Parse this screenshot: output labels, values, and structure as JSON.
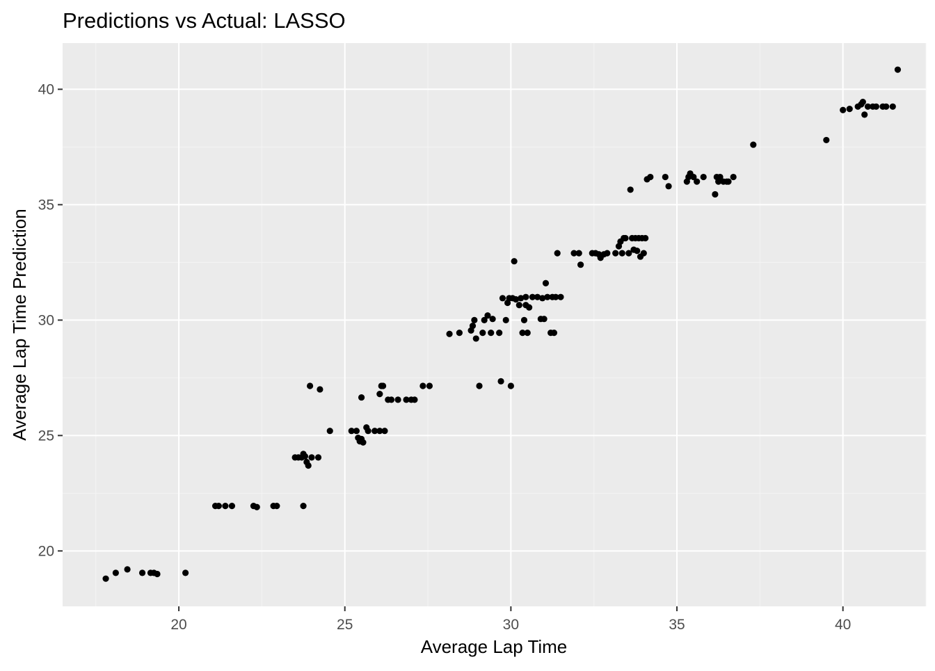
{
  "chart_data": {
    "type": "scatter",
    "title": "Predictions vs Actual: LASSO",
    "xlabel": "Average Lap Time",
    "ylabel": "Average Lap Time Prediction",
    "xlim": [
      16.5,
      42.5
    ],
    "ylim": [
      17.6,
      42.0
    ],
    "x_ticks": [
      20,
      25,
      30,
      35,
      40
    ],
    "y_ticks": [
      20,
      25,
      30,
      35,
      40
    ],
    "x_tick_labels": [
      "20",
      "25",
      "30",
      "35",
      "40"
    ],
    "y_tick_labels": [
      "20",
      "25",
      "30",
      "35",
      "40"
    ],
    "grid": true,
    "legend": "none",
    "colors": {
      "panel_background": "#ebebeb",
      "grid_major": "#ffffff",
      "grid_minor": "#f4f4f4",
      "point": "#000000",
      "tick_label": "#4d4d4d",
      "axis_title": "#000000"
    },
    "points": [
      [
        17.8,
        18.8
      ],
      [
        18.1,
        19.05
      ],
      [
        18.45,
        19.2
      ],
      [
        18.9,
        19.05
      ],
      [
        19.15,
        19.05
      ],
      [
        19.25,
        19.05
      ],
      [
        19.35,
        19.0
      ],
      [
        20.2,
        19.05
      ],
      [
        21.1,
        21.95
      ],
      [
        21.2,
        21.95
      ],
      [
        21.4,
        21.95
      ],
      [
        21.6,
        21.95
      ],
      [
        22.25,
        21.95
      ],
      [
        22.35,
        21.9
      ],
      [
        22.85,
        21.95
      ],
      [
        22.95,
        21.95
      ],
      [
        23.75,
        21.95
      ],
      [
        23.5,
        24.05
      ],
      [
        23.6,
        24.05
      ],
      [
        23.7,
        24.05
      ],
      [
        23.75,
        24.2
      ],
      [
        23.8,
        24.1
      ],
      [
        23.85,
        23.85
      ],
      [
        23.9,
        23.7
      ],
      [
        24.0,
        24.05
      ],
      [
        24.2,
        24.05
      ],
      [
        23.95,
        27.15
      ],
      [
        24.25,
        27.0
      ],
      [
        24.55,
        25.2
      ],
      [
        25.2,
        25.2
      ],
      [
        25.35,
        25.2
      ],
      [
        25.4,
        24.9
      ],
      [
        25.45,
        24.75
      ],
      [
        25.5,
        24.85
      ],
      [
        25.55,
        24.7
      ],
      [
        25.5,
        26.65
      ],
      [
        25.65,
        25.35
      ],
      [
        25.7,
        25.2
      ],
      [
        25.9,
        25.2
      ],
      [
        26.05,
        25.2
      ],
      [
        26.2,
        25.2
      ],
      [
        26.05,
        26.8
      ],
      [
        26.1,
        27.15
      ],
      [
        26.15,
        27.15
      ],
      [
        26.3,
        26.55
      ],
      [
        26.4,
        26.55
      ],
      [
        26.6,
        26.55
      ],
      [
        26.85,
        26.55
      ],
      [
        27.0,
        26.55
      ],
      [
        27.1,
        26.55
      ],
      [
        27.35,
        27.15
      ],
      [
        27.55,
        27.15
      ],
      [
        28.15,
        29.4
      ],
      [
        28.45,
        29.45
      ],
      [
        28.8,
        29.55
      ],
      [
        28.85,
        29.75
      ],
      [
        28.9,
        30.0
      ],
      [
        28.95,
        29.2
      ],
      [
        29.05,
        27.15
      ],
      [
        29.15,
        29.45
      ],
      [
        29.2,
        30.0
      ],
      [
        29.3,
        30.2
      ],
      [
        29.45,
        30.05
      ],
      [
        29.65,
        29.45
      ],
      [
        29.4,
        29.45
      ],
      [
        29.7,
        27.35
      ],
      [
        29.75,
        30.95
      ],
      [
        29.85,
        30.0
      ],
      [
        29.9,
        30.75
      ],
      [
        29.95,
        30.95
      ],
      [
        30.0,
        27.15
      ],
      [
        30.05,
        30.95
      ],
      [
        30.1,
        32.55
      ],
      [
        30.15,
        30.9
      ],
      [
        30.25,
        30.65
      ],
      [
        30.3,
        30.95
      ],
      [
        30.35,
        29.45
      ],
      [
        30.4,
        30.0
      ],
      [
        30.45,
        30.65
      ],
      [
        30.5,
        29.45
      ],
      [
        30.55,
        30.55
      ],
      [
        30.45,
        31.0
      ],
      [
        30.65,
        31.0
      ],
      [
        30.8,
        31.0
      ],
      [
        30.9,
        30.05
      ],
      [
        30.95,
        30.95
      ],
      [
        31.0,
        30.05
      ],
      [
        31.05,
        31.6
      ],
      [
        31.1,
        31.0
      ],
      [
        31.2,
        29.45
      ],
      [
        31.25,
        31.0
      ],
      [
        31.3,
        29.45
      ],
      [
        31.35,
        31.0
      ],
      [
        31.5,
        31.0
      ],
      [
        31.4,
        32.9
      ],
      [
        31.9,
        32.9
      ],
      [
        32.05,
        32.9
      ],
      [
        32.1,
        32.4
      ],
      [
        32.45,
        32.9
      ],
      [
        32.55,
        32.9
      ],
      [
        32.65,
        32.85
      ],
      [
        32.7,
        32.7
      ],
      [
        32.8,
        32.85
      ],
      [
        32.9,
        32.9
      ],
      [
        33.15,
        32.9
      ],
      [
        33.25,
        33.2
      ],
      [
        33.3,
        33.4
      ],
      [
        33.35,
        32.9
      ],
      [
        33.4,
        33.55
      ],
      [
        33.45,
        33.55
      ],
      [
        33.55,
        32.9
      ],
      [
        33.65,
        33.55
      ],
      [
        33.7,
        33.05
      ],
      [
        33.75,
        33.55
      ],
      [
        33.8,
        33.0
      ],
      [
        33.85,
        33.55
      ],
      [
        33.9,
        32.75
      ],
      [
        33.95,
        33.55
      ],
      [
        34.0,
        32.9
      ],
      [
        34.05,
        33.55
      ],
      [
        33.6,
        35.65
      ],
      [
        34.1,
        36.1
      ],
      [
        34.2,
        36.2
      ],
      [
        34.65,
        36.2
      ],
      [
        34.75,
        35.8
      ],
      [
        35.3,
        36.0
      ],
      [
        35.35,
        36.2
      ],
      [
        35.4,
        36.35
      ],
      [
        35.5,
        36.2
      ],
      [
        35.6,
        36.0
      ],
      [
        35.8,
        36.2
      ],
      [
        36.15,
        35.45
      ],
      [
        36.2,
        36.2
      ],
      [
        36.25,
        36.0
      ],
      [
        36.3,
        36.2
      ],
      [
        36.4,
        36.0
      ],
      [
        36.5,
        36.0
      ],
      [
        36.55,
        36.0
      ],
      [
        36.7,
        36.2
      ],
      [
        37.3,
        37.6
      ],
      [
        39.5,
        37.8
      ],
      [
        40.0,
        39.1
      ],
      [
        40.2,
        39.15
      ],
      [
        40.45,
        39.25
      ],
      [
        40.55,
        39.35
      ],
      [
        40.6,
        39.45
      ],
      [
        40.65,
        38.9
      ],
      [
        40.75,
        39.25
      ],
      [
        40.9,
        39.25
      ],
      [
        41.0,
        39.25
      ],
      [
        41.2,
        39.25
      ],
      [
        41.3,
        39.25
      ],
      [
        41.5,
        39.25
      ],
      [
        41.65,
        40.85
      ]
    ]
  }
}
